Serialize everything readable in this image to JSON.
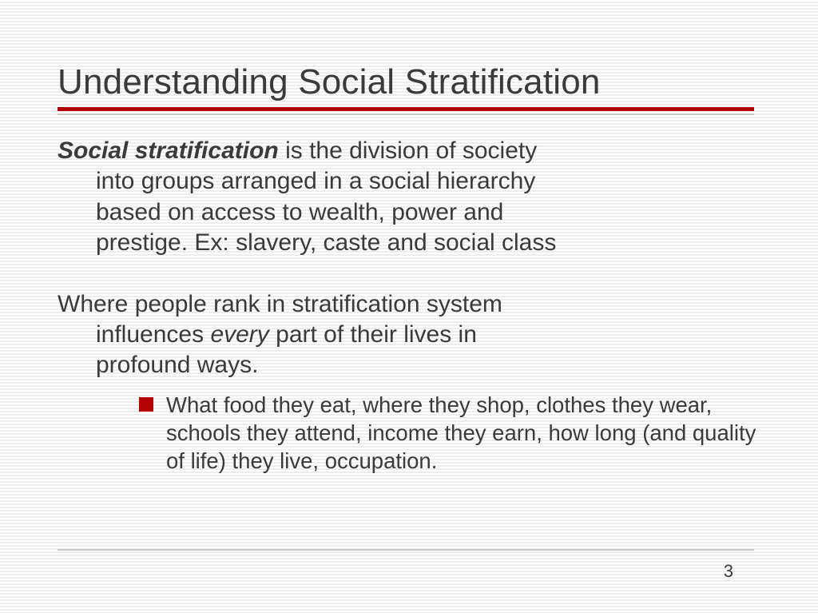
{
  "title": "Understanding Social Stratification",
  "para1": {
    "lead": "Social stratification",
    "line1_rest": " is the division of society",
    "line2": "into groups arranged in a social hierarchy",
    "line3": "based on access to wealth, power and",
    "line4": "prestige. Ex: slavery, caste and social class"
  },
  "para2": {
    "line1": "Where people rank in stratification system",
    "line2a": "influences ",
    "line2_em": "every",
    "line2b": " part of their lives in",
    "line3": "profound ways."
  },
  "sub": {
    "text": "What food they eat, where they shop, clothes they wear, schools they attend, income they earn, how long (and quality of life) they live, occupation."
  },
  "page_number": "3",
  "colors": {
    "accent": "#b30000",
    "text": "#3a3a3a",
    "rule_light": "#c9c9c9",
    "stripe": "#ededed",
    "background": "#ffffff"
  }
}
